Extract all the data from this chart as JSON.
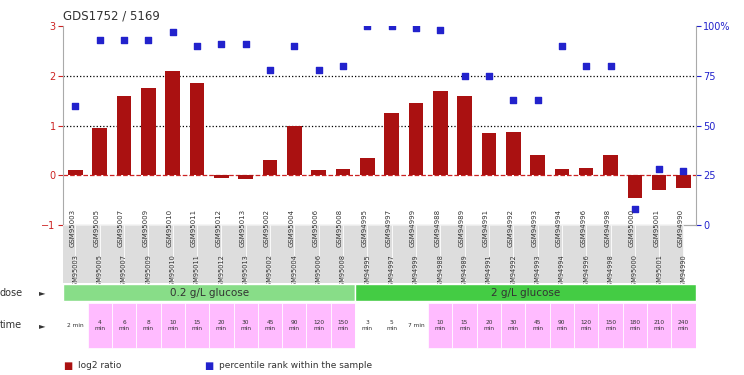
{
  "title": "GDS1752 / 5169",
  "samples": [
    "GSM95003",
    "GSM95005",
    "GSM95007",
    "GSM95009",
    "GSM95010",
    "GSM95011",
    "GSM95012",
    "GSM95013",
    "GSM95002",
    "GSM95004",
    "GSM95006",
    "GSM95008",
    "GSM94995",
    "GSM94997",
    "GSM94999",
    "GSM94988",
    "GSM94989",
    "GSM94991",
    "GSM94992",
    "GSM94993",
    "GSM94994",
    "GSM94996",
    "GSM94998",
    "GSM95000",
    "GSM95001",
    "GSM94990"
  ],
  "log2_ratio": [
    0.1,
    0.95,
    1.6,
    1.75,
    2.1,
    1.85,
    -0.05,
    -0.07,
    0.3,
    1.0,
    0.1,
    0.13,
    0.35,
    1.25,
    1.45,
    1.7,
    1.6,
    0.85,
    0.87,
    0.4,
    0.13,
    0.15,
    0.4,
    -0.45,
    -0.3,
    -0.25
  ],
  "percentile": [
    60,
    93,
    93,
    93,
    97,
    90,
    91,
    91,
    78,
    90,
    78,
    80,
    100,
    100,
    99,
    98,
    75,
    75,
    63,
    63,
    90,
    80,
    80,
    8,
    28,
    27
  ],
  "bar_color": "#aa1111",
  "dot_color": "#2222cc",
  "hline_colors": [
    "#cc2222",
    "#000000",
    "#000000"
  ],
  "hline_values": [
    0,
    1,
    2
  ],
  "hline_styles": [
    "--",
    ":",
    ":"
  ],
  "ylim_left": [
    -1,
    3
  ],
  "ylim_right": [
    0,
    100
  ],
  "yticks_left": [
    -1,
    0,
    1,
    2,
    3
  ],
  "yticks_right": [
    0,
    25,
    50,
    75,
    100
  ],
  "yticklabels_right": [
    "0",
    "25",
    "50",
    "75",
    "100%"
  ],
  "dose_colors": [
    "#88dd88",
    "#44cc44"
  ],
  "dose_texts": [
    "0.2 g/L glucose",
    "2 g/L glucose"
  ],
  "dose_ranges": [
    [
      0,
      11
    ],
    [
      12,
      25
    ]
  ],
  "time_labels": [
    "2 min",
    "4\nmin",
    "6\nmin",
    "8\nmin",
    "10\nmin",
    "15\nmin",
    "20\nmin",
    "30\nmin",
    "45\nmin",
    "90\nmin",
    "120\nmin",
    "150\nmin",
    "3\nmin",
    "5\nmin",
    "7 min",
    "10\nmin",
    "15\nmin",
    "20\nmin",
    "30\nmin",
    "45\nmin",
    "90\nmin",
    "120\nmin",
    "150\nmin",
    "180\nmin",
    "210\nmin",
    "240\nmin"
  ],
  "time_colors": [
    "#ffffff",
    "#ffbbff",
    "#ffbbff",
    "#ffbbff",
    "#ffbbff",
    "#ffbbff",
    "#ffbbff",
    "#ffbbff",
    "#ffbbff",
    "#ffbbff",
    "#ffbbff",
    "#ffbbff",
    "#ffffff",
    "#ffffff",
    "#ffffff",
    "#ffbbff",
    "#ffbbff",
    "#ffbbff",
    "#ffbbff",
    "#ffbbff",
    "#ffbbff",
    "#ffbbff",
    "#ffbbff",
    "#ffbbff",
    "#ffbbff",
    "#ffbbff"
  ],
  "legend_items": [
    {
      "label": "log2 ratio",
      "color": "#aa1111"
    },
    {
      "label": "percentile rank within the sample",
      "color": "#2222cc"
    }
  ],
  "bg_color": "#ffffff",
  "label_color_left": "#cc2222",
  "label_color_right": "#2222cc"
}
